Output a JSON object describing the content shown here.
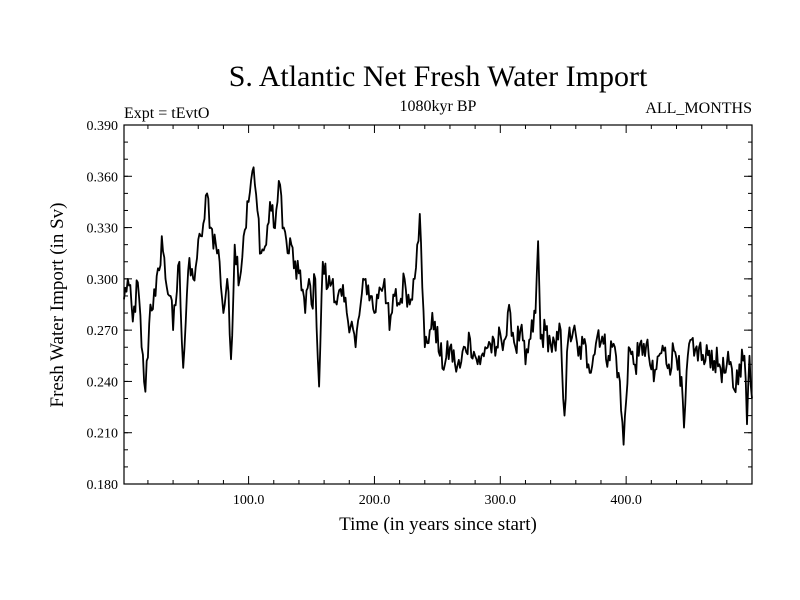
{
  "chart_data": {
    "type": "line",
    "title": "S. Atlantic Net Fresh Water Import",
    "subtitle_left": "Expt = tEvtO",
    "subtitle_center": "1080kyr BP",
    "subtitle_right": "ALL_MONTHS",
    "xlabel": "Time (in years since start)",
    "ylabel": "Fresh Water Import (in Sv)",
    "xlim": [
      1,
      500
    ],
    "ylim": [
      0.18,
      0.39
    ],
    "x_ticks": [
      100,
      200,
      300,
      400
    ],
    "x_tick_labels": [
      "100.0",
      "200.0",
      "300.0",
      "400.0"
    ],
    "y_ticks": [
      0.18,
      0.21,
      0.24,
      0.27,
      0.3,
      0.33,
      0.36,
      0.39
    ],
    "y_tick_labels": [
      "0.180",
      "0.210",
      "0.240",
      "0.270",
      "0.300",
      "0.330",
      "0.360",
      "0.390"
    ],
    "series": [
      {
        "name": "Fresh Water Import",
        "color": "#000000",
        "anchors": [
          [
            1,
            0.288
          ],
          [
            4,
            0.3
          ],
          [
            8,
            0.275
          ],
          [
            12,
            0.298
          ],
          [
            15,
            0.26
          ],
          [
            18,
            0.234
          ],
          [
            22,
            0.285
          ],
          [
            26,
            0.29
          ],
          [
            29,
            0.305
          ],
          [
            31,
            0.325
          ],
          [
            34,
            0.3
          ],
          [
            38,
            0.29
          ],
          [
            40,
            0.27
          ],
          [
            45,
            0.31
          ],
          [
            48,
            0.248
          ],
          [
            52,
            0.305
          ],
          [
            56,
            0.3
          ],
          [
            59,
            0.312
          ],
          [
            62,
            0.325
          ],
          [
            65,
            0.335
          ],
          [
            67,
            0.35
          ],
          [
            70,
            0.33
          ],
          [
            74,
            0.32
          ],
          [
            77,
            0.31
          ],
          [
            80,
            0.28
          ],
          [
            83,
            0.3
          ],
          [
            86,
            0.253
          ],
          [
            89,
            0.32
          ],
          [
            93,
            0.3
          ],
          [
            96,
            0.325
          ],
          [
            100,
            0.345
          ],
          [
            103,
            0.363
          ],
          [
            105,
            0.355
          ],
          [
            107,
            0.34
          ],
          [
            110,
            0.315
          ],
          [
            114,
            0.32
          ],
          [
            117,
            0.345
          ],
          [
            120,
            0.33
          ],
          [
            123,
            0.345
          ],
          [
            125,
            0.355
          ],
          [
            128,
            0.33
          ],
          [
            131,
            0.315
          ],
          [
            134,
            0.32
          ],
          [
            138,
            0.3
          ],
          [
            141,
            0.305
          ],
          [
            145,
            0.28
          ],
          [
            148,
            0.3
          ],
          [
            150,
            0.285
          ],
          [
            153,
            0.3
          ],
          [
            156,
            0.237
          ],
          [
            159,
            0.31
          ],
          [
            163,
            0.295
          ],
          [
            167,
            0.3
          ],
          [
            170,
            0.285
          ],
          [
            174,
            0.29
          ],
          [
            178,
            0.28
          ],
          [
            182,
            0.275
          ],
          [
            185,
            0.26
          ],
          [
            189,
            0.285
          ],
          [
            193,
            0.3
          ],
          [
            197,
            0.29
          ],
          [
            200,
            0.28
          ],
          [
            204,
            0.295
          ],
          [
            208,
            0.3
          ],
          [
            212,
            0.27
          ],
          [
            216,
            0.29
          ],
          [
            220,
            0.285
          ],
          [
            224,
            0.3
          ],
          [
            228,
            0.285
          ],
          [
            231,
            0.3
          ],
          [
            234,
            0.32
          ],
          [
            236,
            0.338
          ],
          [
            238,
            0.295
          ],
          [
            240,
            0.26
          ],
          [
            244,
            0.27
          ],
          [
            248,
            0.275
          ],
          [
            252,
            0.255
          ],
          [
            256,
            0.25
          ],
          [
            260,
            0.26
          ],
          [
            264,
            0.25
          ],
          [
            268,
            0.248
          ],
          [
            272,
            0.26
          ],
          [
            276,
            0.265
          ],
          [
            280,
            0.255
          ],
          [
            284,
            0.25
          ],
          [
            288,
            0.26
          ],
          [
            292,
            0.262
          ],
          [
            296,
            0.255
          ],
          [
            300,
            0.268
          ],
          [
            304,
            0.265
          ],
          [
            308,
            0.28
          ],
          [
            312,
            0.26
          ],
          [
            316,
            0.27
          ],
          [
            320,
            0.25
          ],
          [
            324,
            0.265
          ],
          [
            328,
            0.28
          ],
          [
            330,
            0.322
          ],
          [
            332,
            0.265
          ],
          [
            336,
            0.27
          ],
          [
            340,
            0.262
          ],
          [
            344,
            0.258
          ],
          [
            348,
            0.27
          ],
          [
            351,
            0.22
          ],
          [
            354,
            0.265
          ],
          [
            358,
            0.27
          ],
          [
            362,
            0.255
          ],
          [
            366,
            0.262
          ],
          [
            370,
            0.25
          ],
          [
            374,
            0.255
          ],
          [
            378,
            0.27
          ],
          [
            382,
            0.262
          ],
          [
            386,
            0.255
          ],
          [
            390,
            0.262
          ],
          [
            394,
            0.245
          ],
          [
            398,
            0.203
          ],
          [
            402,
            0.26
          ],
          [
            406,
            0.25
          ],
          [
            410,
            0.255
          ],
          [
            414,
            0.262
          ],
          [
            418,
            0.255
          ],
          [
            422,
            0.24
          ],
          [
            426,
            0.255
          ],
          [
            430,
            0.258
          ],
          [
            434,
            0.25
          ],
          [
            438,
            0.258
          ],
          [
            442,
            0.255
          ],
          [
            446,
            0.213
          ],
          [
            450,
            0.262
          ],
          [
            454,
            0.255
          ],
          [
            458,
            0.26
          ],
          [
            462,
            0.25
          ],
          [
            466,
            0.258
          ],
          [
            470,
            0.252
          ],
          [
            474,
            0.25
          ],
          [
            478,
            0.245
          ],
          [
            482,
            0.25
          ],
          [
            486,
            0.235
          ],
          [
            490,
            0.25
          ],
          [
            494,
            0.255
          ],
          [
            496,
            0.215
          ],
          [
            498,
            0.255
          ],
          [
            500,
            0.23
          ]
        ]
      }
    ]
  }
}
